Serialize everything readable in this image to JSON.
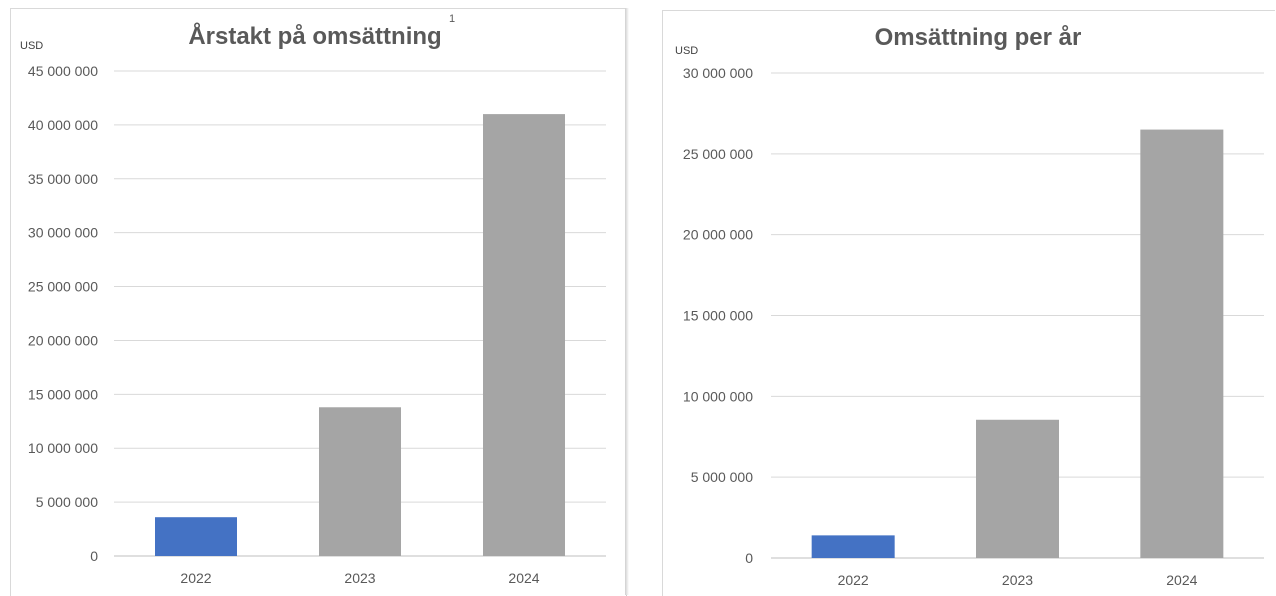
{
  "chart_data": [
    {
      "type": "bar",
      "title": "Årstakt på omsättning",
      "title_superscript": "1",
      "ylabel": "USD",
      "xlabel": "",
      "categories": [
        "2022",
        "2023",
        "2024"
      ],
      "values": [
        3600000,
        13800000,
        41000000
      ],
      "bar_colors": [
        "#4472C4",
        "#A5A5A5",
        "#A5A5A5"
      ],
      "ylim": [
        0,
        45000000
      ],
      "yticks": [
        0,
        5000000,
        10000000,
        15000000,
        20000000,
        25000000,
        30000000,
        35000000,
        40000000,
        45000000
      ],
      "ytick_labels": [
        "0",
        "5 000 000",
        "10 000 000",
        "15 000 000",
        "20 000 000",
        "25 000 000",
        "30 000 000",
        "35 000 000",
        "40 000 000",
        "45 000 000"
      ],
      "grid": true,
      "legend": "none"
    },
    {
      "type": "bar",
      "title": "Omsättning per år",
      "ylabel": "USD",
      "xlabel": "",
      "categories": [
        "2022",
        "2023",
        "2024"
      ],
      "values": [
        1400000,
        8550000,
        26500000
      ],
      "bar_colors": [
        "#4472C4",
        "#A5A5A5",
        "#A5A5A5"
      ],
      "ylim": [
        0,
        30000000
      ],
      "yticks": [
        0,
        5000000,
        10000000,
        15000000,
        20000000,
        25000000,
        30000000
      ],
      "ytick_labels": [
        "0",
        "5 000 000",
        "10 000 000",
        "15 000 000",
        "20 000 000",
        "25 000 000",
        "30 000 000"
      ],
      "grid": true,
      "legend": "none"
    }
  ]
}
